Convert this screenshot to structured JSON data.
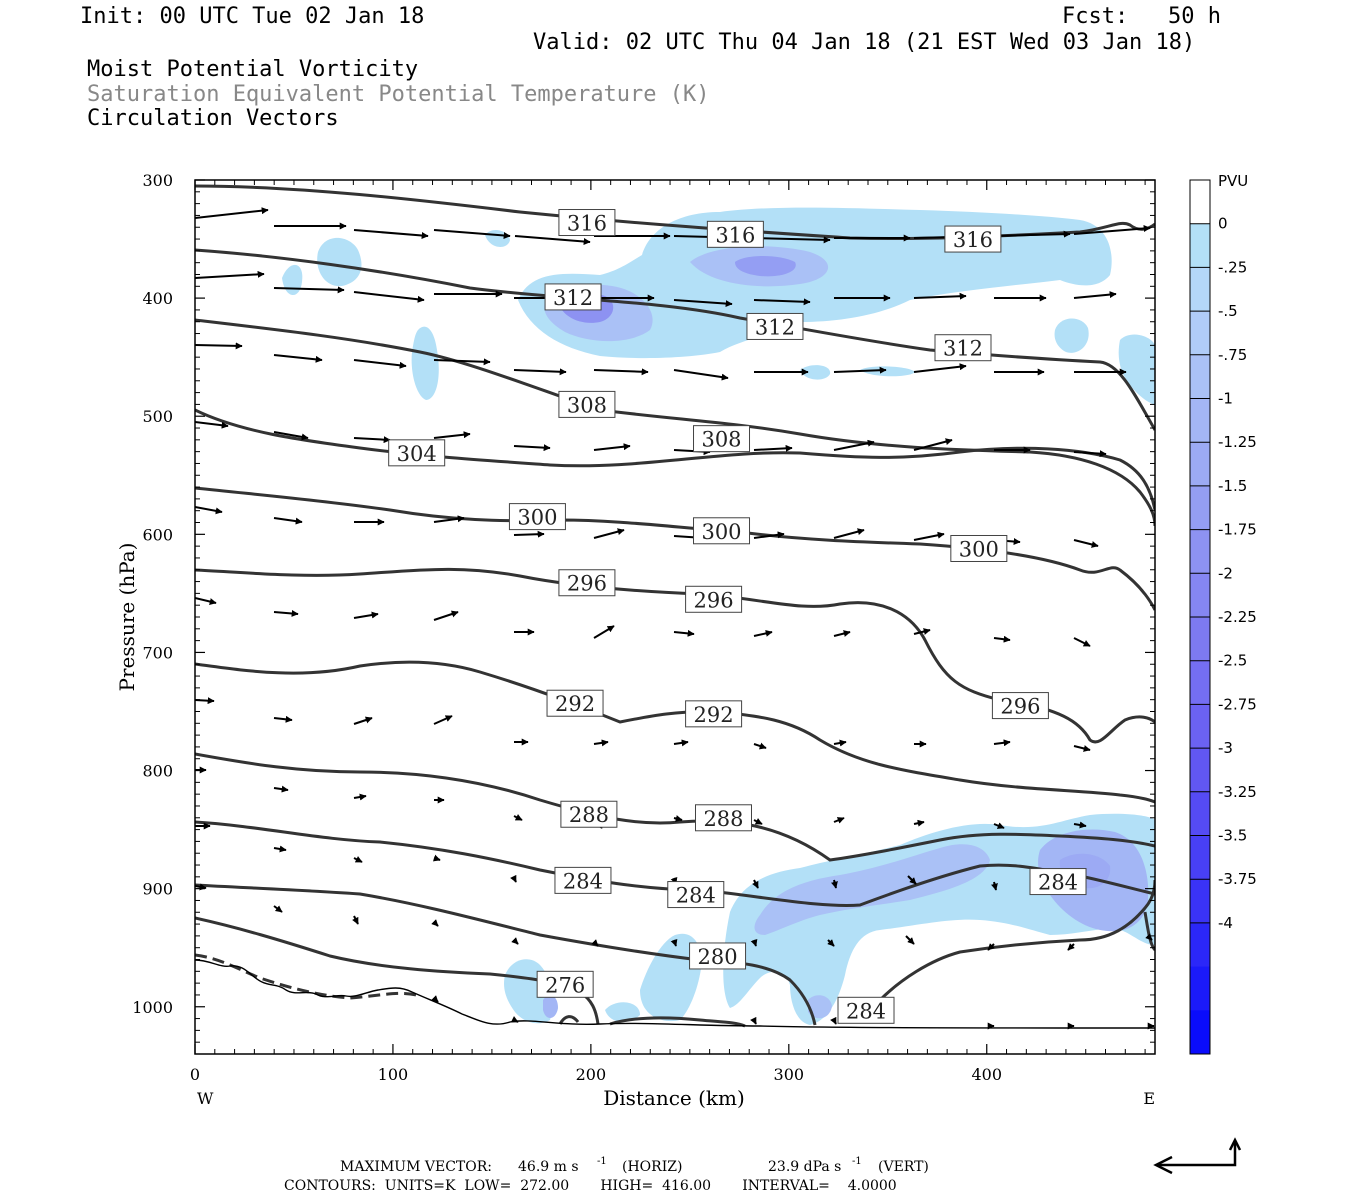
{
  "header": {
    "init": "Init: 00 UTC Tue 02 Jan 18",
    "fcst": "Fcst:   50 h",
    "valid": "Valid: 02 UTC Thu 04 Jan 18 (21 EST Wed 03 Jan 18)",
    "field1": "Moist Potential Vorticity",
    "field2": "Saturation Equivalent Potential Temperature (K)",
    "field3": "Circulation Vectors"
  },
  "footer": {
    "line1_label": "MAXIMUM VECTOR:",
    "line1_horiz_value": "46.9 m s",
    "line1_horiz_tag": "(HORIZ)",
    "line1_vert_value": "23.9 dPa s",
    "line1_vert_tag": "(VERT)",
    "exp": "-1",
    "line2": "CONTOURS:  UNITS=K  LOW=  272.00       HIGH=  416.00       INTERVAL=    4.0000"
  },
  "chart_data": {
    "type": "cross-section",
    "xlabel": "Distance (km)",
    "ylabel": "Pressure (hPa)",
    "xlim": [
      0,
      485
    ],
    "ylim": [
      1040,
      300
    ],
    "x_ticks": [
      "0",
      "100",
      "200",
      "300",
      "400"
    ],
    "y_ticks": [
      "300",
      "400",
      "500",
      "600",
      "700",
      "800",
      "900",
      "1000"
    ],
    "x_end_labels": {
      "left": "W",
      "right": "E"
    },
    "colorbar": {
      "units": "PVU",
      "labels": [
        "0",
        "-.25",
        "-.5",
        "-.75",
        "-1",
        "-1.25",
        "-1.5",
        "-1.75",
        "-2",
        "-2.25",
        "-2.5",
        "-2.75",
        "-3",
        "-3.25",
        "-3.5",
        "-3.75",
        "-4"
      ],
      "fill_colors": [
        "#ffffff",
        "#b3e0f7",
        "#b4d7f8",
        "#b0ccf8",
        "#aac1f6",
        "#a3b6f5",
        "#9caaf4",
        "#949ef3",
        "#8d92f2",
        "#8586f2",
        "#7d7af1",
        "#746ef2",
        "#6b62f2",
        "#6157f3",
        "#554bf4",
        "#4840f5",
        "#3a33f6",
        "#2b27f8",
        "#1b1afa",
        "#0a0cfc"
      ]
    },
    "contours": {
      "units": "K",
      "labels": [
        {
          "text": "316",
          "x": 198,
          "p": 336
        },
        {
          "text": "316",
          "x": 273,
          "p": 346
        },
        {
          "text": "316",
          "x": 393,
          "p": 350
        },
        {
          "text": "312",
          "x": 191,
          "p": 399
        },
        {
          "text": "312",
          "x": 293,
          "p": 424
        },
        {
          "text": "312",
          "x": 388,
          "p": 442
        },
        {
          "text": "308",
          "x": 198,
          "p": 490
        },
        {
          "text": "308",
          "x": 266,
          "p": 519
        },
        {
          "text": "304",
          "x": 112,
          "p": 531
        },
        {
          "text": "300",
          "x": 173,
          "p": 585
        },
        {
          "text": "300",
          "x": 266,
          "p": 597
        },
        {
          "text": "300",
          "x": 396,
          "p": 612
        },
        {
          "text": "296",
          "x": 198,
          "p": 641
        },
        {
          "text": "296",
          "x": 262,
          "p": 655
        },
        {
          "text": "296",
          "x": 417,
          "p": 745
        },
        {
          "text": "292",
          "x": 192,
          "p": 743
        },
        {
          "text": "292",
          "x": 262,
          "p": 752
        },
        {
          "text": "288",
          "x": 199,
          "p": 837
        },
        {
          "text": "288",
          "x": 267,
          "p": 840
        },
        {
          "text": "284",
          "x": 196,
          "p": 893
        },
        {
          "text": "284",
          "x": 253,
          "p": 905
        },
        {
          "text": "284",
          "x": 436,
          "p": 894
        },
        {
          "text": "284",
          "x": 339,
          "p": 1003
        },
        {
          "text": "280",
          "x": 264,
          "p": 957
        },
        {
          "text": "276",
          "x": 187,
          "p": 981
        }
      ]
    }
  },
  "corner_arrow": "reference-vector-arrow"
}
